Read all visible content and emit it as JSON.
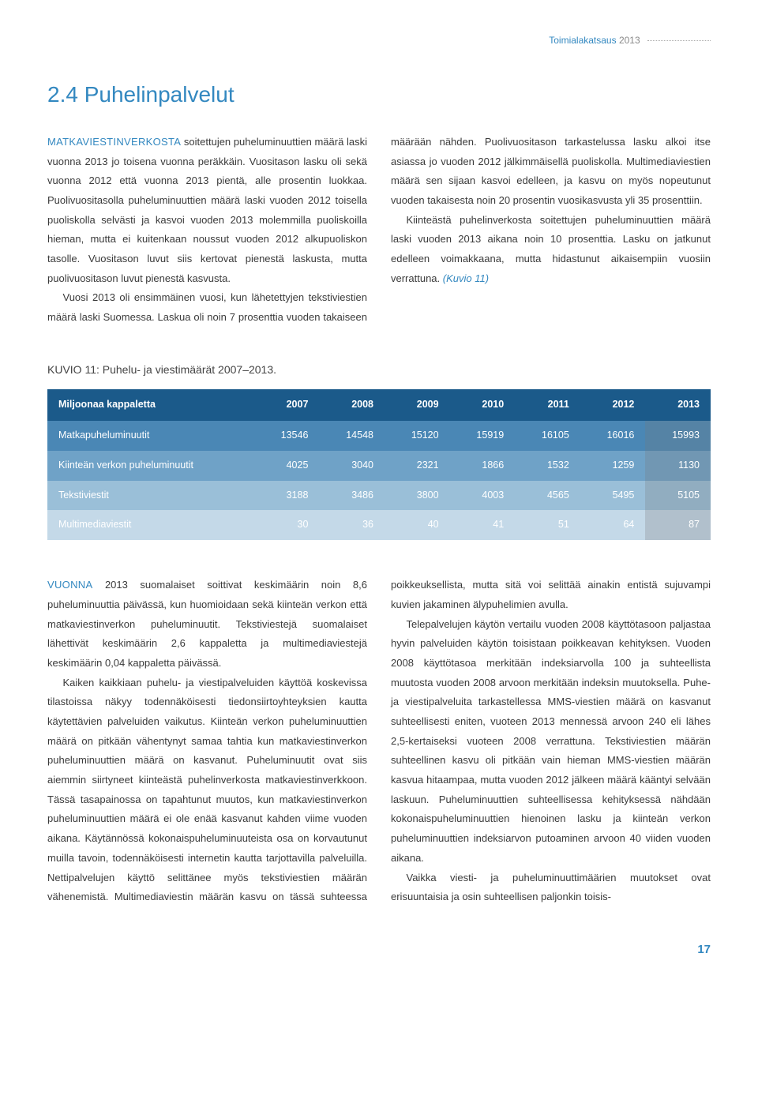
{
  "header": {
    "label": "Toimialakatsaus",
    "year": "2013"
  },
  "title": "2.4 Puhelinpalvelut",
  "intro": {
    "lead": "MATKAVIESTINVERKOSTA",
    "p1_rest": " soitettujen puheluminuuttien määrä laski vuonna 2013 jo toisena vuonna peräkkäin. Vuositason lasku oli sekä vuonna 2012 että vuonna 2013 pientä, alle prosentin luokkaa. Puolivuositasolla puheluminuuttien määrä laski vuoden 2012 toisella puoliskolla selvästi ja kasvoi vuoden 2013 molemmilla puoliskoilla hieman, mutta ei kuitenkaan noussut vuoden 2012 alkupuoliskon tasolle. Vuositason luvut siis kertovat pienestä laskusta, mutta puolivuositason luvut pienestä kasvusta.",
    "p2": "Vuosi 2013 oli ensimmäinen vuosi, kun lähetettyjen tekstiviestien määrä laski Suomessa. Laskua oli noin 7 prosenttia vuoden takaiseen määrään nähden. Puolivuositason tarkastelussa lasku alkoi itse asiassa jo vuoden 2012 jälkimmäisellä puoliskolla. Multimediaviestien määrä sen sijaan kasvoi edelleen, ja kasvu on myös nopeutunut vuoden takaisesta noin 20 prosentin vuosikasvusta yli 35 prosenttiin.",
    "p3": "Kiinteästä puhelinverkosta soitettujen puheluminuuttien määrä laski vuoden 2013 aikana noin 10 prosenttia. Lasku on jatkunut edelleen voimakkaana, mutta hidastunut aikaisempiin vuosiin verrattuna. ",
    "p3_ref": "(Kuvio 11)"
  },
  "table": {
    "caption": "KUVIO 11: Puhelu- ja viestimäärät 2007–2013.",
    "header_label": "Miljoonaa kappaletta",
    "years": [
      "2007",
      "2008",
      "2009",
      "2010",
      "2011",
      "2012",
      "2013"
    ],
    "rows": [
      {
        "label": "Matkapuheluminuutit",
        "cells": [
          "13546",
          "14548",
          "15120",
          "15919",
          "16105",
          "16016",
          "15993"
        ]
      },
      {
        "label": "Kiinteän verkon puheluminuutit",
        "cells": [
          "4025",
          "3040",
          "2321",
          "1866",
          "1532",
          "1259",
          "1130"
        ]
      },
      {
        "label": "Tekstiviestit",
        "cells": [
          "3188",
          "3486",
          "3800",
          "4003",
          "4565",
          "5495",
          "5105"
        ]
      },
      {
        "label": "Multimediaviestit",
        "cells": [
          "30",
          "36",
          "40",
          "41",
          "51",
          "64",
          "87"
        ]
      }
    ],
    "header_bg": "#1b5a8a",
    "row_bgs": [
      "#4a87b5",
      "#6fa2c7",
      "#9abfd8",
      "#c4d9e8"
    ]
  },
  "body": {
    "lead2": "VUONNA",
    "p4_rest": " 2013 suomalaiset soittivat keskimäärin noin 8,6 puheluminuuttia päivässä, kun huomioidaan sekä kiinteän verkon että matkaviestinverkon puheluminuutit. Tekstiviestejä suomalaiset lähettivät keskimäärin 2,6 kappaletta ja multimediaviestejä keskimäärin 0,04 kappaletta päivässä.",
    "p5": "Kaiken kaikkiaan puhelu- ja viestipalveluiden käyttöä koskevissa tilastoissa näkyy todennäköisesti tiedonsiirtoyhteyksien kautta käytettävien palveluiden vaikutus. Kiinteän verkon puheluminuuttien määrä on pitkään vähentynyt samaa tahtia kun matkaviestinverkon puheluminuuttien määrä on kasvanut. Puheluminuutit ovat siis aiemmin siirtyneet kiinteästä puhelinverkosta matkaviestinverkkoon. Tässä tasapainossa on tapahtunut muutos, kun matkaviestinverkon puheluminuuttien määrä ei ole enää kasvanut kahden viime vuoden aikana. Käytännössä kokonaispuheluminuuteista osa on korvautunut muilla tavoin, todennäköisesti internetin kautta tarjottavilla palveluilla. Nettipalvelujen käyttö selittänee myös tekstiviestien määrän vähenemistä. Multimediaviestin määrän kasvu on tässä suhteessa poikkeuksellista, mutta sitä voi selittää ainakin entistä sujuvampi kuvien jakaminen älypuhelimien avulla.",
    "p6": "Telepalvelujen käytön vertailu vuoden 2008 käyttötasoon paljastaa hyvin palveluiden käytön toisistaan poikkeavan kehityksen. Vuoden 2008 käyttötasoa merkitään indeksiarvolla 100 ja suhteellista muutosta vuoden 2008 arvoon merkitään indeksin muutoksella. Puhe- ja viestipalveluita tarkastellessa MMS-viestien määrä on kasvanut suhteellisesti eniten, vuoteen 2013 mennessä arvoon 240 eli lähes 2,5-kertaiseksi vuoteen 2008 verrattuna. Tekstiviestien määrän suhteellinen kasvu oli pitkään vain hieman MMS-viestien määrän kasvua hitaampaa, mutta vuoden 2012 jälkeen määrä kääntyi selvään laskuun. Puheluminuuttien suhteellisessa kehityksessä nähdään kokonaispuheluminuuttien hienoinen lasku ja kiinteän verkon puheluminuuttien indeksiarvon putoaminen arvoon 40 viiden vuoden aikana.",
    "p7": "Vaikka viesti- ja puheluminuuttimäärien muutokset ovat erisuuntaisia ja osin suhteellisen paljonkin toisis-"
  },
  "page_number": "17"
}
